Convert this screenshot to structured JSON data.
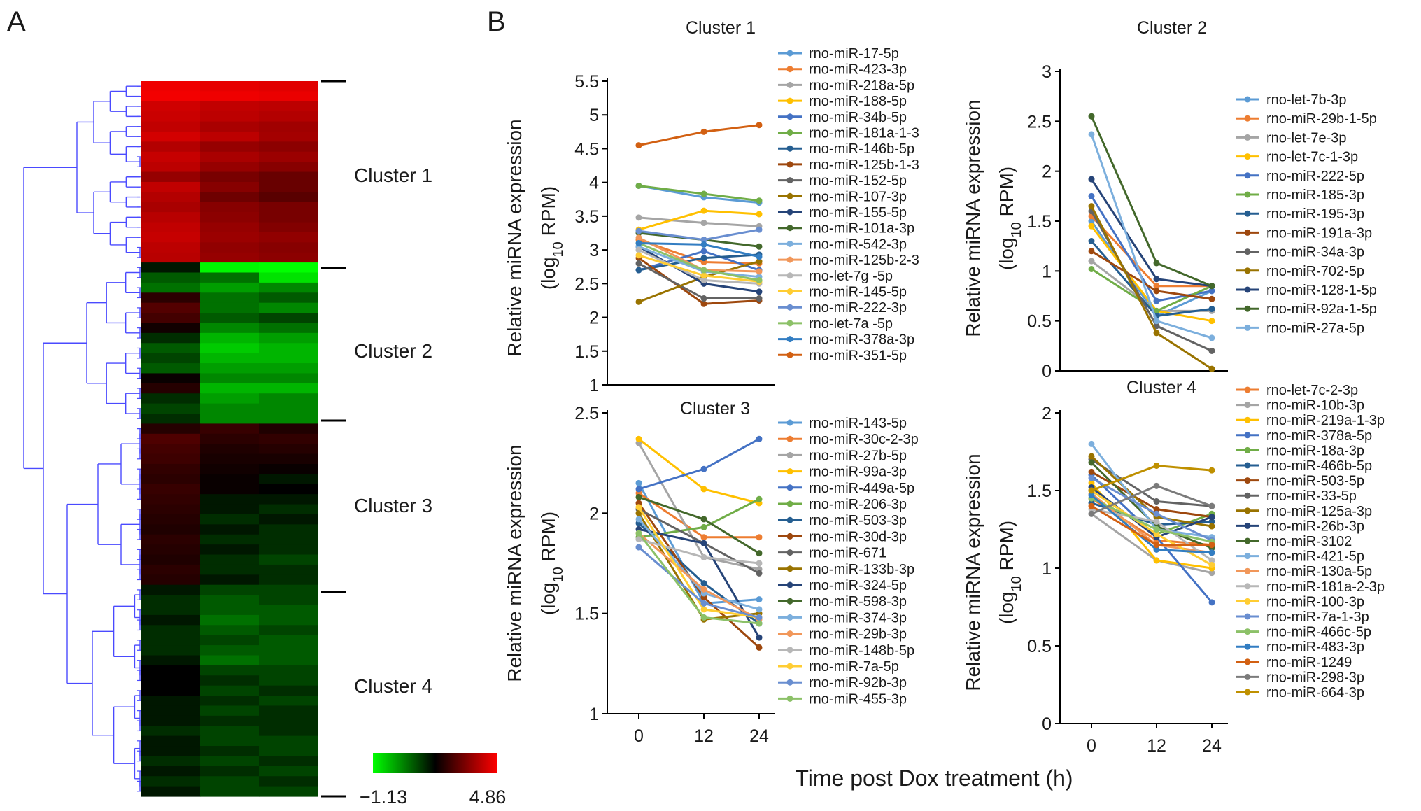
{
  "panel_labels": {
    "a": "A",
    "b": "B"
  },
  "x_axis_title": "Time post Dox treatment (h)",
  "heatmap": {
    "clusters": [
      "Cluster 1",
      "Cluster 2",
      "Cluster 3",
      "Cluster 4"
    ],
    "scale_min": "−1.13",
    "scale_max": "4.86",
    "scale_colors": [
      "#00ff00",
      "#000000",
      "#ff0000"
    ],
    "dendrogram_color": "#4a4aff",
    "cluster_rows": [
      [
        4.5,
        4.3,
        4.2
      ],
      [
        4.6,
        4.5,
        4.4
      ],
      [
        3.8,
        3.5,
        3.4
      ],
      [
        3.7,
        3.4,
        3.2
      ],
      [
        3.5,
        3.0,
        2.8
      ],
      [
        3.9,
        3.4,
        2.9
      ],
      [
        3.2,
        2.6,
        2.4
      ],
      [
        3.6,
        3.0,
        2.7
      ],
      [
        3.4,
        2.6,
        2.3
      ],
      [
        2.6,
        2.0,
        1.7
      ],
      [
        3.5,
        2.3,
        1.7
      ],
      [
        3.2,
        1.8,
        1.4
      ],
      [
        3.0,
        2.3,
        2.0
      ],
      [
        3.3,
        2.4,
        2.0
      ],
      [
        3.5,
        2.6,
        2.2
      ],
      [
        3.6,
        2.7,
        2.5
      ],
      [
        3.4,
        2.5,
        2.3
      ],
      [
        3.3,
        2.6,
        2.4
      ],
      [
        -0.1,
        -1.1,
        -1.13
      ],
      [
        -0.4,
        -0.5,
        -1.0
      ],
      [
        -0.5,
        -0.7,
        -0.6
      ],
      [
        0.6,
        -0.5,
        -0.4
      ],
      [
        1.3,
        -0.5,
        -0.6
      ],
      [
        1.0,
        -0.4,
        -0.3
      ],
      [
        0.2,
        -0.6,
        -0.5
      ],
      [
        -0.2,
        -0.8,
        -0.7
      ],
      [
        -0.4,
        -0.9,
        -0.8
      ],
      [
        -0.3,
        -0.8,
        -0.8
      ],
      [
        -0.4,
        -0.7,
        -0.7
      ],
      [
        0.1,
        -0.6,
        -0.6
      ],
      [
        0.5,
        -0.8,
        -0.8
      ],
      [
        -0.2,
        -0.7,
        -0.6
      ],
      [
        -0.3,
        -0.6,
        -0.6
      ],
      [
        -0.2,
        -0.6,
        -0.6
      ],
      [
        0.5,
        0.8,
        0.4
      ],
      [
        1.2,
        0.6,
        0.7
      ],
      [
        1.0,
        0.4,
        0.5
      ],
      [
        0.9,
        0.3,
        0.3
      ],
      [
        0.7,
        0.2,
        0.1
      ],
      [
        0.6,
        0.1,
        -0.1
      ],
      [
        0.8,
        0.1,
        0.0
      ],
      [
        0.7,
        -0.1,
        -0.1
      ],
      [
        0.6,
        -0.1,
        -0.2
      ],
      [
        0.5,
        -0.2,
        -0.1
      ],
      [
        0.4,
        -0.1,
        -0.2
      ],
      [
        0.6,
        -0.2,
        -0.2
      ],
      [
        0.5,
        -0.1,
        -0.2
      ],
      [
        0.4,
        -0.2,
        -0.3
      ],
      [
        0.6,
        -0.2,
        -0.2
      ],
      [
        0.5,
        -0.1,
        -0.2
      ],
      [
        -0.1,
        -0.3,
        -0.3
      ],
      [
        -0.2,
        -0.4,
        -0.3
      ],
      [
        -0.2,
        -0.4,
        -0.4
      ],
      [
        -0.1,
        -0.5,
        -0.4
      ],
      [
        -0.2,
        -0.4,
        -0.3
      ],
      [
        -0.2,
        -0.3,
        -0.4
      ],
      [
        -0.2,
        -0.4,
        -0.4
      ],
      [
        -0.1,
        -0.5,
        -0.4
      ],
      [
        0.0,
        -0.3,
        -0.3
      ],
      [
        0.0,
        -0.2,
        -0.3
      ],
      [
        0.0,
        -0.3,
        -0.2
      ],
      [
        -0.1,
        -0.2,
        -0.3
      ],
      [
        -0.1,
        -0.3,
        -0.2
      ],
      [
        -0.1,
        -0.2,
        -0.2
      ],
      [
        -0.2,
        -0.3,
        -0.2
      ],
      [
        -0.1,
        -0.3,
        -0.3
      ],
      [
        -0.1,
        -0.2,
        -0.3
      ],
      [
        -0.2,
        -0.3,
        -0.2
      ],
      [
        -0.1,
        -0.2,
        -0.3
      ],
      [
        -0.2,
        -0.3,
        -0.2
      ],
      [
        -0.1,
        -0.3,
        -0.3
      ]
    ]
  },
  "chart_data": [
    {
      "type": "line",
      "title": "Cluster 1",
      "ylabel_main": "Relative miRNA expression",
      "ylabel_unit": [
        "(log",
        "10",
        " RPM)"
      ],
      "x": [
        0,
        12,
        24
      ],
      "ylim": [
        1,
        5.5
      ],
      "yticks": [
        1,
        1.5,
        2,
        2.5,
        3,
        3.5,
        4,
        4.5,
        5,
        5.5
      ],
      "xticks": [],
      "series": [
        {
          "name": "rno-miR-17-5p",
          "color": "#5b9bd5",
          "values": [
            3.95,
            3.78,
            3.7
          ]
        },
        {
          "name": "rno-miR-423-3p",
          "color": "#ed7d31",
          "values": [
            3.15,
            2.82,
            2.8
          ]
        },
        {
          "name": "rno-miR-218a-5p",
          "color": "#a5a5a5",
          "values": [
            3.48,
            3.4,
            3.35
          ]
        },
        {
          "name": "rno-miR-188-5p",
          "color": "#ffc000",
          "values": [
            3.3,
            3.58,
            3.53
          ]
        },
        {
          "name": "rno-miR-34b-5p",
          "color": "#4472c4",
          "values": [
            2.7,
            2.98,
            2.7
          ]
        },
        {
          "name": "rno-miR-181a-1-3",
          "color": "#70ad47",
          "values": [
            3.95,
            3.83,
            3.73
          ]
        },
        {
          "name": "rno-miR-146b-5p",
          "color": "#255e91",
          "values": [
            2.7,
            2.88,
            2.93
          ]
        },
        {
          "name": "rno-miR-125b-1-3",
          "color": "#9e480e",
          "values": [
            2.88,
            2.2,
            2.25
          ]
        },
        {
          "name": "rno-miR-152-5p",
          "color": "#636363",
          "values": [
            2.8,
            2.28,
            2.28
          ]
        },
        {
          "name": "rno-miR-107-3p",
          "color": "#997300",
          "values": [
            2.23,
            2.6,
            2.83
          ]
        },
        {
          "name": "rno-miR-155-5p",
          "color": "#264478",
          "values": [
            3.05,
            2.5,
            2.38
          ]
        },
        {
          "name": "rno-miR-101a-3p",
          "color": "#43682b",
          "values": [
            3.25,
            3.15,
            3.05
          ]
        },
        {
          "name": "rno-miR-542-3p",
          "color": "#7cafdd",
          "values": [
            3.05,
            2.68,
            2.6
          ]
        },
        {
          "name": "rno-miR-125b-2-3",
          "color": "#f1975a",
          "values": [
            3.18,
            2.7,
            2.68
          ]
        },
        {
          "name": "rno-let-7g -5p",
          "color": "#b7b7b7",
          "values": [
            3.0,
            2.55,
            2.5
          ]
        },
        {
          "name": "rno-miR-145-5p",
          "color": "#ffcd33",
          "values": [
            2.92,
            2.62,
            2.53
          ]
        },
        {
          "name": "rno-miR-222-3p",
          "color": "#698ed0",
          "values": [
            3.28,
            3.15,
            3.3
          ]
        },
        {
          "name": "rno-let-7a -5p",
          "color": "#8cc168",
          "values": [
            3.1,
            2.7,
            2.55
          ]
        },
        {
          "name": "rno-miR-378a-3p",
          "color": "#327dc2",
          "values": [
            3.1,
            3.08,
            2.9
          ]
        },
        {
          "name": "rno-miR-351-5p",
          "color": "#d26012",
          "values": [
            4.55,
            4.75,
            4.85
          ]
        }
      ]
    },
    {
      "type": "line",
      "title": "Cluster 2",
      "ylabel_main": "Relative miRNA expression",
      "ylabel_unit": [
        "(log",
        "10",
        " RPM)"
      ],
      "x": [
        0,
        12,
        24
      ],
      "ylim": [
        0,
        3
      ],
      "yticks": [
        0,
        0.5,
        1,
        1.5,
        2,
        2.5,
        3
      ],
      "xticks": [],
      "series": [
        {
          "name": "rno-let-7b-3p",
          "color": "#5b9bd5",
          "values": [
            1.5,
            0.55,
            0.8
          ]
        },
        {
          "name": "rno-miR-29b-1-5p",
          "color": "#ed7d31",
          "values": [
            1.55,
            0.85,
            0.85
          ]
        },
        {
          "name": "rno-let-7e-3p",
          "color": "#a5a5a5",
          "values": [
            1.1,
            0.6,
            0.6
          ]
        },
        {
          "name": "rno-let-7c-1-3p",
          "color": "#ffc000",
          "values": [
            1.45,
            0.6,
            0.5
          ]
        },
        {
          "name": "rno-miR-222-5p",
          "color": "#4472c4",
          "values": [
            1.75,
            0.7,
            0.8
          ]
        },
        {
          "name": "rno-miR-185-3p",
          "color": "#70ad47",
          "values": [
            1.02,
            0.6,
            0.85
          ]
        },
        {
          "name": "rno-miR-195-3p",
          "color": "#255e91",
          "values": [
            1.3,
            0.55,
            0.62
          ]
        },
        {
          "name": "rno-miR-191a-3p",
          "color": "#9e480e",
          "values": [
            1.2,
            0.8,
            0.72
          ]
        },
        {
          "name": "rno-miR-34a-3p",
          "color": "#636363",
          "values": [
            1.6,
            0.45,
            0.2
          ]
        },
        {
          "name": "rno-miR-702-5p",
          "color": "#997300",
          "values": [
            1.65,
            0.38,
            0.02
          ]
        },
        {
          "name": "rno-miR-128-1-5p",
          "color": "#264478",
          "values": [
            1.92,
            0.92,
            0.85
          ]
        },
        {
          "name": "rno-miR-92a-1-5p",
          "color": "#43682b",
          "values": [
            2.55,
            1.08,
            0.85
          ]
        },
        {
          "name": "rno-miR-27a-5p",
          "color": "#7cafdd",
          "values": [
            2.37,
            0.5,
            0.33
          ]
        }
      ]
    },
    {
      "type": "line",
      "title": "Cluster 3",
      "ylabel_main": "Relative miRNA expression",
      "ylabel_unit": [
        "(log",
        "10",
        " RPM)"
      ],
      "x": [
        0,
        12,
        24
      ],
      "ylim": [
        1,
        2.5
      ],
      "yticks": [
        1,
        1.5,
        2,
        2.5
      ],
      "xticks": [
        "0",
        "12",
        "24"
      ],
      "series": [
        {
          "name": "rno-miR-143-5p",
          "color": "#5b9bd5",
          "values": [
            2.15,
            1.55,
            1.57
          ]
        },
        {
          "name": "rno-miR-30c-2-3p",
          "color": "#ed7d31",
          "values": [
            2.1,
            1.88,
            1.88
          ]
        },
        {
          "name": "rno-miR-27b-5p",
          "color": "#a5a5a5",
          "values": [
            2.35,
            1.78,
            1.72
          ]
        },
        {
          "name": "rno-miR-99a-3p",
          "color": "#ffc000",
          "values": [
            2.37,
            2.12,
            2.05
          ]
        },
        {
          "name": "rno-miR-449a-5p",
          "color": "#4472c4",
          "values": [
            2.12,
            2.22,
            2.37
          ]
        },
        {
          "name": "rno-miR-206-3p",
          "color": "#70ad47",
          "values": [
            1.88,
            1.93,
            2.07
          ]
        },
        {
          "name": "rno-miR-503-3p",
          "color": "#255e91",
          "values": [
            1.95,
            1.65,
            1.45
          ]
        },
        {
          "name": "rno-miR-30d-3p",
          "color": "#9e480e",
          "values": [
            2.05,
            1.58,
            1.33
          ]
        },
        {
          "name": "rno-miR-671",
          "color": "#636363",
          "values": [
            2.02,
            1.85,
            1.7
          ]
        },
        {
          "name": "rno-miR-133b-3p",
          "color": "#997300",
          "values": [
            2.0,
            1.47,
            1.5
          ]
        },
        {
          "name": "rno-miR-324-5p",
          "color": "#264478",
          "values": [
            1.92,
            1.85,
            1.38
          ]
        },
        {
          "name": "rno-miR-598-3p",
          "color": "#43682b",
          "values": [
            2.08,
            1.97,
            1.8
          ]
        },
        {
          "name": "rno-miR-374-3p",
          "color": "#7cafdd",
          "values": [
            1.97,
            1.6,
            1.52
          ]
        },
        {
          "name": "rno-miR-29b-3p",
          "color": "#f1975a",
          "values": [
            1.9,
            1.62,
            1.47
          ]
        },
        {
          "name": "rno-miR-148b-5p",
          "color": "#b7b7b7",
          "values": [
            1.87,
            1.78,
            1.75
          ]
        },
        {
          "name": "rno-miR-7a-5p",
          "color": "#ffcd33",
          "values": [
            2.03,
            1.52,
            1.48
          ]
        },
        {
          "name": "rno-miR-92b-3p",
          "color": "#698ed0",
          "values": [
            1.83,
            1.55,
            1.48
          ]
        },
        {
          "name": "rno-miR-455-3p",
          "color": "#8cc168",
          "values": [
            1.9,
            1.48,
            1.45
          ]
        }
      ]
    },
    {
      "type": "line",
      "title": "Cluster 4",
      "ylabel_main": "Relative miRNA expression",
      "ylabel_unit": [
        "(log",
        "10",
        " RPM)"
      ],
      "x": [
        0,
        12,
        24
      ],
      "ylim": [
        0,
        2
      ],
      "yticks": [
        0,
        0.5,
        1,
        1.5,
        2
      ],
      "xticks": [
        "0",
        "12",
        "24"
      ],
      "series": [
        {
          "name": "rno-let-7c-2-3p",
          "color": "#ed7d31",
          "values": [
            1.45,
            1.18,
            1.15
          ]
        },
        {
          "name": "rno-miR-10b-3p",
          "color": "#a5a5a5",
          "values": [
            1.35,
            1.05,
            0.97
          ]
        },
        {
          "name": "rno-miR-219a-1-3p",
          "color": "#ffc000",
          "values": [
            1.55,
            1.05,
            1.0
          ]
        },
        {
          "name": "rno-miR-378a-5p",
          "color": "#4472c4",
          "values": [
            1.6,
            1.2,
            0.78
          ]
        },
        {
          "name": "rno-miR-18a-3p",
          "color": "#70ad47",
          "values": [
            1.5,
            1.22,
            1.35
          ]
        },
        {
          "name": "rno-miR-466b-5p",
          "color": "#255e91",
          "values": [
            1.42,
            1.28,
            1.3
          ]
        },
        {
          "name": "rno-miR-503-5p",
          "color": "#9e480e",
          "values": [
            1.62,
            1.38,
            1.33
          ]
        },
        {
          "name": "rno-miR-33-5p",
          "color": "#636363",
          "values": [
            1.7,
            1.43,
            1.4
          ]
        },
        {
          "name": "rno-miR-125a-3p",
          "color": "#997300",
          "values": [
            1.72,
            1.33,
            1.27
          ]
        },
        {
          "name": "rno-miR-26b-3p",
          "color": "#264478",
          "values": [
            1.52,
            1.2,
            1.33
          ]
        },
        {
          "name": "rno-miR-3102",
          "color": "#43682b",
          "values": [
            1.68,
            1.27,
            1.13
          ]
        },
        {
          "name": "rno-miR-421-5p",
          "color": "#7cafdd",
          "values": [
            1.8,
            1.25,
            1.2
          ]
        },
        {
          "name": "rno-miR-130a-5p",
          "color": "#f1975a",
          "values": [
            1.48,
            1.15,
            1.1
          ]
        },
        {
          "name": "rno-miR-181a-2-3p",
          "color": "#b7b7b7",
          "values": [
            1.38,
            1.3,
            1.05
          ]
        },
        {
          "name": "rno-miR-100-3p",
          "color": "#ffcd33",
          "values": [
            1.5,
            1.22,
            1.02
          ]
        },
        {
          "name": "rno-miR-7a-1-3p",
          "color": "#698ed0",
          "values": [
            1.58,
            1.35,
            1.18
          ]
        },
        {
          "name": "rno-miR-466c-5p",
          "color": "#8cc168",
          "values": [
            1.45,
            1.25,
            1.17
          ]
        },
        {
          "name": "rno-miR-483-3p",
          "color": "#327dc2",
          "values": [
            1.47,
            1.12,
            1.1
          ]
        },
        {
          "name": "rno-miR-1249",
          "color": "#d26012",
          "values": [
            1.4,
            1.15,
            1.15
          ]
        },
        {
          "name": "rno-miR-298-3p",
          "color": "#7b7b7b",
          "values": [
            1.35,
            1.53,
            1.4
          ]
        },
        {
          "name": "rno-miR-664-3p",
          "color": "#bf9000",
          "values": [
            1.5,
            1.66,
            1.63
          ]
        }
      ]
    }
  ]
}
